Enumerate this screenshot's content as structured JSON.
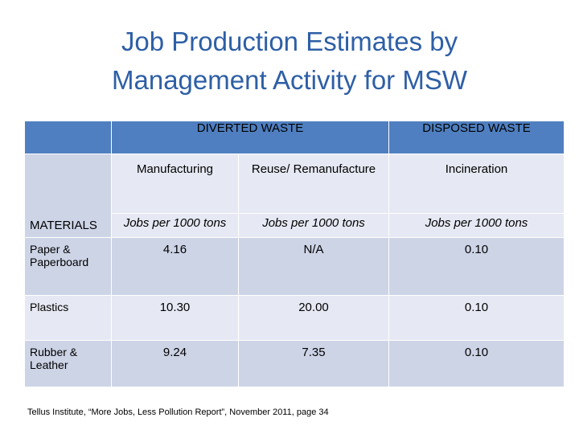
{
  "title": {
    "line1": "Job Production Estimates by",
    "line2": "Management Activity for MSW"
  },
  "table": {
    "group_headers": {
      "diverted": "DIVERTED WASTE",
      "disposed": "DISPOSED WASTE"
    },
    "sub_headers": {
      "manufacturing": "Manufacturing",
      "reuse": "Reuse/ Remanufacture",
      "incineration": "Incineration"
    },
    "units_row": {
      "label": "MATERIALS",
      "manufacturing": "Jobs per 1000 tons",
      "reuse": "Jobs per 1000 tons",
      "incineration": "Jobs per 1000 tons"
    },
    "rows": [
      {
        "material": "Paper & Paperboard",
        "manufacturing": "4.16",
        "reuse": "N/A",
        "incineration": "0.10"
      },
      {
        "material": "Plastics",
        "manufacturing": "10.30",
        "reuse": "20.00",
        "incineration": "0.10"
      },
      {
        "material": "Rubber & Leather",
        "manufacturing": "9.24",
        "reuse": "7.35",
        "incineration": "0.10"
      }
    ]
  },
  "footnote": "Tellus Institute, “More Jobs, Less Pollution Report”, November 2011, page 34"
}
